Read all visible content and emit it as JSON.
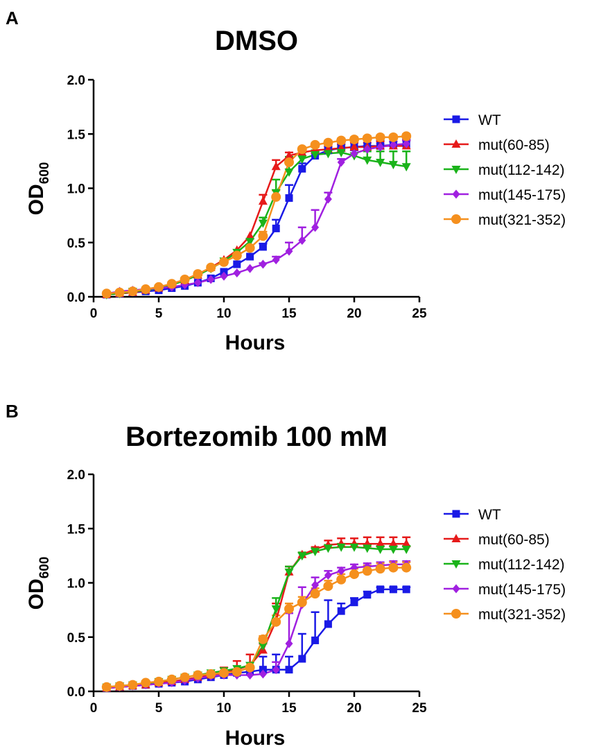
{
  "chart_data": [
    {
      "type": "line",
      "panel": "A",
      "title": "DMSO",
      "xlabel": "Hours",
      "ylabel": {
        "main": "OD",
        "subscript": "600"
      },
      "xlim": [
        0,
        25
      ],
      "ylim": [
        0,
        2.0
      ],
      "xticks": [
        0,
        5,
        10,
        15,
        20,
        25
      ],
      "yticks": [
        "0.0",
        "0.5",
        "1.0",
        "1.5",
        "2.0"
      ],
      "grid": false,
      "legend_position": "right",
      "x": [
        1,
        2,
        3,
        4,
        5,
        6,
        7,
        8,
        9,
        10,
        11,
        12,
        13,
        14,
        15,
        16,
        17,
        18,
        19,
        20,
        21,
        22,
        23,
        24
      ],
      "series": [
        {
          "name": "WT",
          "color": "#1a1ae6",
          "marker": "square",
          "values": [
            0.02,
            0.03,
            0.04,
            0.05,
            0.06,
            0.08,
            0.1,
            0.13,
            0.17,
            0.23,
            0.3,
            0.37,
            0.46,
            0.63,
            0.91,
            1.18,
            1.3,
            1.35,
            1.37,
            1.38,
            1.39,
            1.39,
            1.4,
            1.4
          ],
          "errors": [
            0,
            0,
            0,
            0,
            0,
            0,
            0,
            0,
            0,
            0,
            0,
            0,
            0.03,
            0.08,
            0.12,
            0.05,
            0.03,
            0.03,
            0.04,
            0.05,
            0.06,
            0.05,
            0.05,
            0.05
          ]
        },
        {
          "name": "mut(60-85)",
          "color": "#e61a1a",
          "marker": "triangle-up",
          "values": [
            0.02,
            0.03,
            0.04,
            0.06,
            0.08,
            0.11,
            0.15,
            0.2,
            0.27,
            0.34,
            0.43,
            0.56,
            0.88,
            1.2,
            1.3,
            1.33,
            1.35,
            1.36,
            1.37,
            1.38,
            1.38,
            1.39,
            1.39,
            1.39
          ],
          "errors": [
            0,
            0,
            0,
            0,
            0,
            0,
            0,
            0,
            0,
            0,
            0,
            0,
            0.06,
            0.06,
            0.03,
            0.02,
            0.03,
            0.03,
            0.03,
            0.04,
            0.04,
            0.04,
            0.04,
            0.05
          ]
        },
        {
          "name": "mut(112-142)",
          "color": "#1ab31a",
          "marker": "triangle-down",
          "values": [
            0.02,
            0.03,
            0.05,
            0.06,
            0.08,
            0.11,
            0.15,
            0.2,
            0.26,
            0.33,
            0.41,
            0.51,
            0.68,
            0.96,
            1.15,
            1.27,
            1.31,
            1.32,
            1.33,
            1.3,
            1.26,
            1.24,
            1.22,
            1.2
          ],
          "errors": [
            0,
            0,
            0,
            0,
            0,
            0,
            0,
            0,
            0,
            0,
            0,
            0,
            0.05,
            0.12,
            0.14,
            0.06,
            0.04,
            0.04,
            0.05,
            0.06,
            0.08,
            0.1,
            0.12,
            0.14
          ]
        },
        {
          "name": "mut(145-175)",
          "color": "#a020e0",
          "marker": "diamond",
          "values": [
            0.03,
            0.05,
            0.06,
            0.07,
            0.08,
            0.09,
            0.11,
            0.13,
            0.16,
            0.19,
            0.22,
            0.26,
            0.3,
            0.34,
            0.42,
            0.52,
            0.64,
            0.9,
            1.24,
            1.32,
            1.36,
            1.38,
            1.4,
            1.41
          ],
          "errors": [
            0,
            0,
            0,
            0,
            0,
            0,
            0,
            0,
            0,
            0,
            0,
            0,
            0.01,
            0.03,
            0.08,
            0.12,
            0.16,
            0.06,
            0.03,
            0.03,
            0.03,
            0.03,
            0.03,
            0.03
          ]
        },
        {
          "name": "mut(321-352)",
          "color": "#f5901e",
          "marker": "circle",
          "values": [
            0.03,
            0.04,
            0.05,
            0.07,
            0.09,
            0.12,
            0.16,
            0.21,
            0.27,
            0.32,
            0.38,
            0.45,
            0.56,
            0.92,
            1.24,
            1.36,
            1.4,
            1.42,
            1.44,
            1.45,
            1.46,
            1.47,
            1.47,
            1.48
          ],
          "errors": [
            0,
            0,
            0,
            0,
            0,
            0,
            0,
            0,
            0,
            0,
            0,
            0,
            0.04,
            0.06,
            0.03,
            0.02,
            0.02,
            0.02,
            0.02,
            0.02,
            0.02,
            0.02,
            0.02,
            0.02
          ]
        }
      ]
    },
    {
      "type": "line",
      "panel": "B",
      "title": "Bortezomib 100 mM",
      "xlabel": "Hours",
      "ylabel": {
        "main": "OD",
        "subscript": "600"
      },
      "xlim": [
        0,
        25
      ],
      "ylim": [
        0,
        2.0
      ],
      "xticks": [
        0,
        5,
        10,
        15,
        20,
        25
      ],
      "yticks": [
        "0.0",
        "0.5",
        "1.0",
        "1.5",
        "2.0"
      ],
      "grid": false,
      "legend_position": "right",
      "x": [
        1,
        2,
        3,
        4,
        5,
        6,
        7,
        8,
        9,
        10,
        11,
        12,
        13,
        14,
        15,
        16,
        17,
        18,
        19,
        20,
        21,
        22,
        23,
        24
      ],
      "series": [
        {
          "name": "WT",
          "color": "#1a1ae6",
          "marker": "square",
          "values": [
            0.03,
            0.04,
            0.05,
            0.06,
            0.07,
            0.08,
            0.09,
            0.11,
            0.13,
            0.15,
            0.17,
            0.18,
            0.2,
            0.2,
            0.2,
            0.3,
            0.47,
            0.62,
            0.74,
            0.82,
            0.89,
            0.94,
            0.94,
            0.94
          ],
          "errors": [
            0,
            0,
            0,
            0,
            0,
            0,
            0,
            0,
            0,
            0,
            0,
            0,
            0.12,
            0.14,
            0.12,
            0.23,
            0.26,
            0.22,
            0.07,
            0.04,
            0.03,
            0.02,
            0.02,
            0.02
          ]
        },
        {
          "name": "mut(60-85)",
          "color": "#e61a1a",
          "marker": "triangle-up",
          "values": [
            0.03,
            0.04,
            0.05,
            0.06,
            0.08,
            0.09,
            0.11,
            0.13,
            0.15,
            0.17,
            0.2,
            0.24,
            0.38,
            0.65,
            1.1,
            1.26,
            1.31,
            1.35,
            1.36,
            1.36,
            1.36,
            1.36,
            1.36,
            1.36
          ],
          "errors": [
            0,
            0,
            0,
            0,
            0,
            0,
            0,
            0,
            0,
            0.05,
            0.08,
            0.1,
            0.06,
            0.16,
            0.05,
            0.02,
            0.02,
            0.04,
            0.05,
            0.05,
            0.06,
            0.06,
            0.06,
            0.06
          ]
        },
        {
          "name": "mut(112-142)",
          "color": "#1ab31a",
          "marker": "triangle-down",
          "values": [
            0.04,
            0.05,
            0.06,
            0.07,
            0.09,
            0.11,
            0.13,
            0.15,
            0.17,
            0.19,
            0.21,
            0.24,
            0.42,
            0.76,
            1.1,
            1.25,
            1.29,
            1.32,
            1.33,
            1.33,
            1.32,
            1.31,
            1.31,
            1.31
          ],
          "errors": [
            0,
            0,
            0,
            0,
            0,
            0,
            0,
            0,
            0,
            0,
            0,
            0,
            0.05,
            0.1,
            0.05,
            0.03,
            0.03,
            0.03,
            0.03,
            0.03,
            0.03,
            0.03,
            0.03,
            0.03
          ]
        },
        {
          "name": "mut(145-175)",
          "color": "#a020e0",
          "marker": "diamond",
          "values": [
            0.03,
            0.04,
            0.05,
            0.06,
            0.07,
            0.08,
            0.1,
            0.12,
            0.14,
            0.15,
            0.15,
            0.15,
            0.16,
            0.2,
            0.44,
            0.8,
            0.98,
            1.07,
            1.11,
            1.14,
            1.15,
            1.16,
            1.17,
            1.17
          ],
          "errors": [
            0,
            0,
            0,
            0,
            0,
            0,
            0,
            0,
            0.04,
            0.04,
            0.04,
            0.04,
            0.03,
            0.07,
            0.28,
            0.16,
            0.07,
            0.04,
            0.03,
            0.03,
            0.03,
            0.03,
            0.03,
            0.03
          ]
        },
        {
          "name": "mut(321-352)",
          "color": "#f5901e",
          "marker": "circle",
          "values": [
            0.04,
            0.05,
            0.06,
            0.08,
            0.09,
            0.11,
            0.13,
            0.15,
            0.16,
            0.17,
            0.18,
            0.22,
            0.48,
            0.64,
            0.76,
            0.82,
            0.9,
            0.97,
            1.03,
            1.08,
            1.11,
            1.13,
            1.14,
            1.14
          ],
          "errors": [
            0,
            0,
            0,
            0,
            0,
            0,
            0,
            0,
            0,
            0,
            0,
            0,
            0.03,
            0.06,
            0.05,
            0.05,
            0.05,
            0.05,
            0.05,
            0.05,
            0.05,
            0.05,
            0.05,
            0.05
          ]
        }
      ]
    }
  ]
}
